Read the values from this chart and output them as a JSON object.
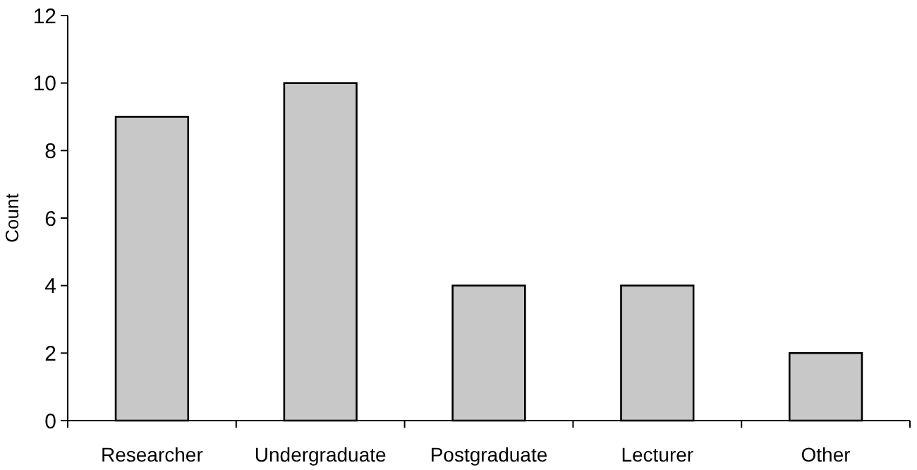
{
  "chart_data": {
    "type": "bar",
    "ylabel": "Count",
    "categories": [
      "Researcher",
      "Undergraduate",
      "Postgraduate",
      "Lecturer",
      "Other"
    ],
    "values": [
      9,
      10,
      4,
      4,
      2
    ],
    "color": "#c8c8c8",
    "ylim": [
      0,
      12
    ],
    "yticks": [
      0,
      2,
      4,
      6,
      8,
      10,
      12
    ],
    "grid": false
  }
}
